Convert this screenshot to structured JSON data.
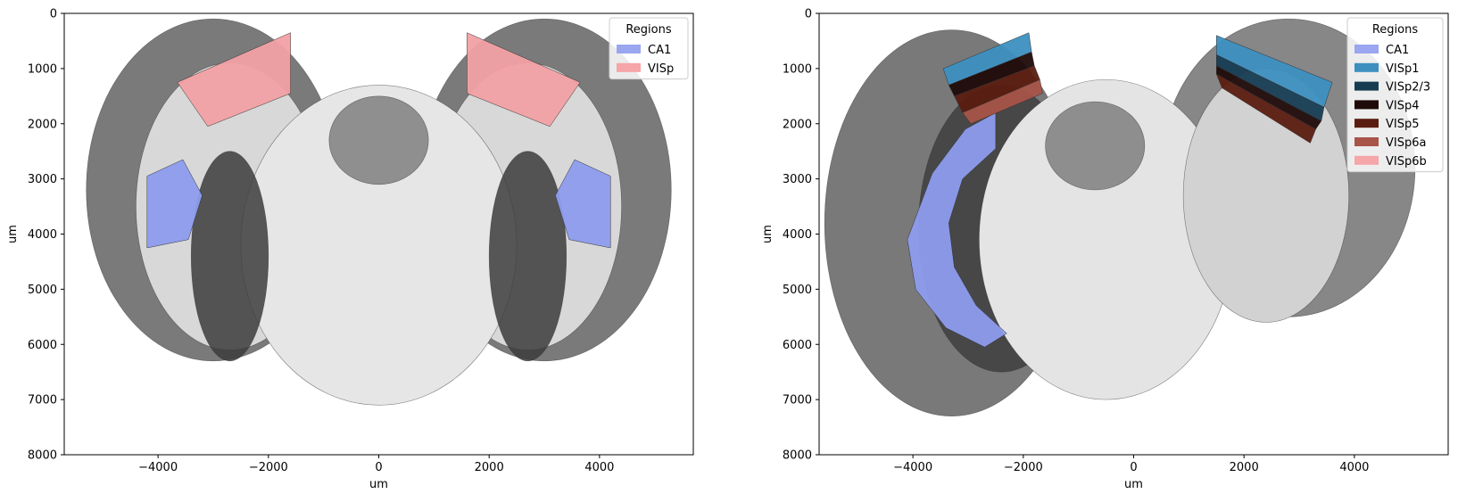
{
  "chart_data": [
    {
      "type": "heatmap",
      "title": "",
      "xlabel": "um",
      "ylabel": "um",
      "xlim": [
        -5700,
        5700
      ],
      "ylim": [
        8000,
        0
      ],
      "xticks": [
        -4000,
        -2000,
        0,
        2000,
        4000
      ],
      "yticks": [
        0,
        1000,
        2000,
        3000,
        4000,
        5000,
        6000,
        7000,
        8000
      ],
      "xtick_labels": [
        "−4000",
        "−2000",
        "0",
        "2000",
        "4000"
      ],
      "ytick_labels": [
        "0",
        "1000",
        "2000",
        "3000",
        "4000",
        "5000",
        "6000",
        "7000",
        "8000"
      ],
      "legend": {
        "title": "Regions",
        "placement": "top-right",
        "entries": [
          {
            "label": "CA1",
            "color": "#9aa6ef"
          },
          {
            "label": "VISp",
            "color": "#f6a5a8"
          }
        ]
      },
      "regions": [
        {
          "name": "CA1",
          "color": "#8d9cee",
          "polygons": [
            [
              [
                -4200,
                2950
              ],
              [
                -3550,
                2650
              ],
              [
                -3200,
                3300
              ],
              [
                -3450,
                4100
              ],
              [
                -4200,
                4250
              ]
            ],
            [
              [
                4200,
                2950
              ],
              [
                3550,
                2650
              ],
              [
                3200,
                3300
              ],
              [
                3450,
                4100
              ],
              [
                4200,
                4250
              ]
            ]
          ]
        },
        {
          "name": "VISp",
          "color": "#f2a1a4",
          "polygons": [
            [
              [
                -3650,
                1250
              ],
              [
                -1600,
                350
              ],
              [
                -1600,
                1450
              ],
              [
                -3100,
                2050
              ]
            ],
            [
              [
                3650,
                1250
              ],
              [
                1600,
                350
              ],
              [
                1600,
                1450
              ],
              [
                3100,
                2050
              ]
            ]
          ]
        }
      ]
    },
    {
      "type": "heatmap",
      "title": "",
      "xlabel": "um",
      "ylabel": "um",
      "xlim": [
        -5700,
        5700
      ],
      "ylim": [
        8000,
        0
      ],
      "xticks": [
        -4000,
        -2000,
        0,
        2000,
        4000
      ],
      "yticks": [
        0,
        1000,
        2000,
        3000,
        4000,
        5000,
        6000,
        7000,
        8000
      ],
      "xtick_labels": [
        "−4000",
        "−2000",
        "0",
        "2000",
        "4000"
      ],
      "ytick_labels": [
        "0",
        "1000",
        "2000",
        "3000",
        "4000",
        "5000",
        "6000",
        "7000",
        "8000"
      ],
      "legend": {
        "title": "Regions",
        "placement": "top-right",
        "entries": [
          {
            "label": "CA1",
            "color": "#9aa6ef"
          },
          {
            "label": "VISp1",
            "color": "#3d8fc0"
          },
          {
            "label": "VISp2/3",
            "color": "#163c52"
          },
          {
            "label": "VISp4",
            "color": "#1e0a08"
          },
          {
            "label": "VISp5",
            "color": "#5a1c10"
          },
          {
            "label": "VISp6a",
            "color": "#a85448"
          },
          {
            "label": "VISp6b",
            "color": "#f6a5a8"
          }
        ]
      },
      "regions": [
        {
          "name": "CA1",
          "color": "#8d9cee",
          "polygons": [
            [
              [
                -2500,
                1800
              ],
              [
                -3050,
                2100
              ],
              [
                -3650,
                2900
              ],
              [
                -4100,
                4100
              ],
              [
                -3950,
                5000
              ],
              [
                -3400,
                5700
              ],
              [
                -2700,
                6050
              ],
              [
                -2300,
                5800
              ],
              [
                -2850,
                5300
              ],
              [
                -3250,
                4600
              ],
              [
                -3350,
                3800
              ],
              [
                -3100,
                3000
              ],
              [
                -2500,
                2450
              ]
            ]
          ]
        },
        {
          "name": "VISp1",
          "color": "#3d8fc0",
          "polygons": [
            [
              [
                -3450,
                1000
              ],
              [
                -1900,
                350
              ],
              [
                -1850,
                700
              ],
              [
                -3350,
                1300
              ]
            ],
            [
              [
                1500,
                400
              ],
              [
                3600,
                1250
              ],
              [
                3450,
                1700
              ],
              [
                1500,
                750
              ]
            ]
          ]
        },
        {
          "name": "VISp2/3",
          "color": "#163c52",
          "polygons": [
            [
              [
                1500,
                750
              ],
              [
                3450,
                1700
              ],
              [
                3400,
                1950
              ],
              [
                1500,
                950
              ]
            ]
          ]
        },
        {
          "name": "VISp4",
          "color": "#1e0a08",
          "polygons": [
            [
              [
                -3350,
                1300
              ],
              [
                -1850,
                700
              ],
              [
                -1800,
                950
              ],
              [
                -3250,
                1500
              ]
            ],
            [
              [
                1500,
                950
              ],
              [
                3400,
                1950
              ],
              [
                3300,
                2100
              ],
              [
                1500,
                1100
              ]
            ]
          ]
        },
        {
          "name": "VISp5",
          "color": "#5a1c10",
          "polygons": [
            [
              [
                -3250,
                1500
              ],
              [
                -1800,
                950
              ],
              [
                -1700,
                1200
              ],
              [
                -3100,
                1800
              ]
            ],
            [
              [
                1500,
                1100
              ],
              [
                3300,
                2100
              ],
              [
                3200,
                2350
              ],
              [
                1600,
                1350
              ]
            ]
          ]
        },
        {
          "name": "VISp6a",
          "color": "#a85448",
          "polygons": [
            [
              [
                -3100,
                1800
              ],
              [
                -1700,
                1200
              ],
              [
                -1650,
                1450
              ],
              [
                -2950,
                2000
              ]
            ]
          ]
        }
      ]
    }
  ]
}
